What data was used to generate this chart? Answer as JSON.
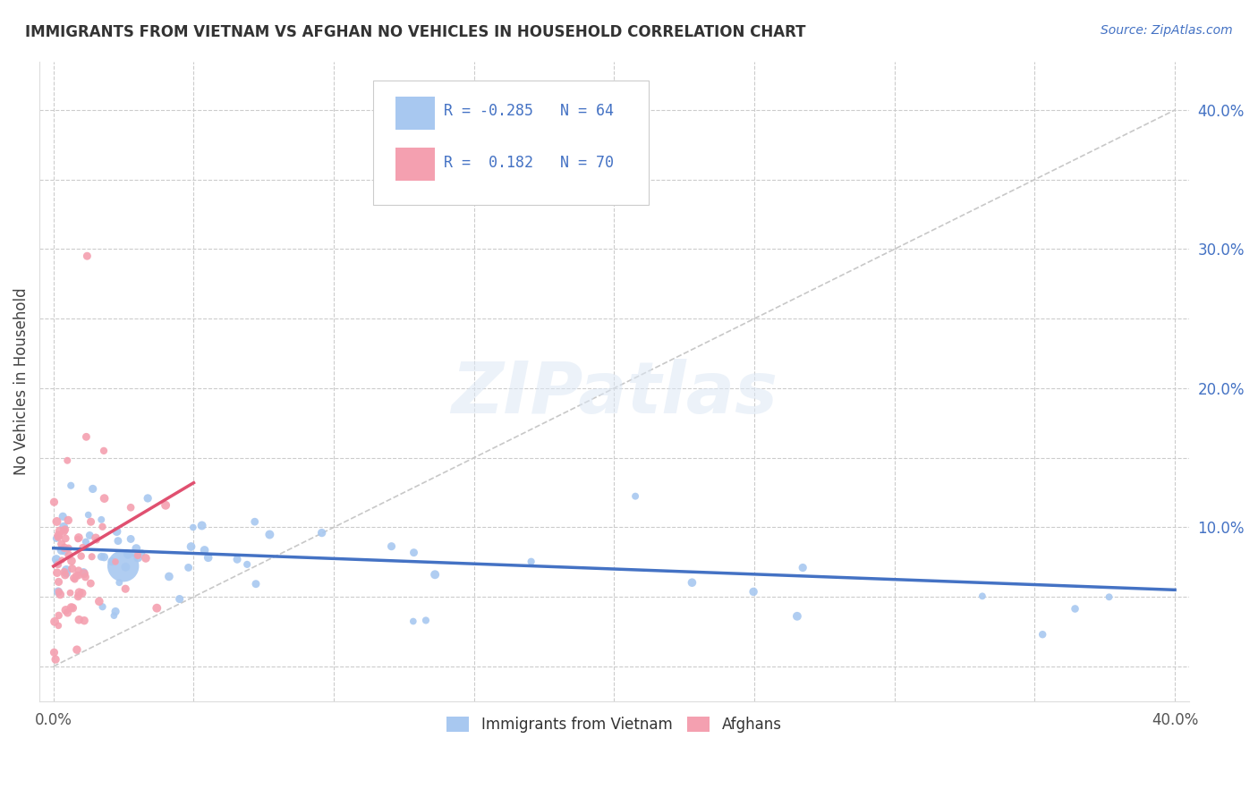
{
  "title": "IMMIGRANTS FROM VIETNAM VS AFGHAN NO VEHICLES IN HOUSEHOLD CORRELATION CHART",
  "source": "Source: ZipAtlas.com",
  "ylabel": "No Vehicles in Household",
  "xlim": [
    -0.005,
    0.405
  ],
  "ylim": [
    -0.025,
    0.435
  ],
  "xticks": [
    0.0,
    0.05,
    0.1,
    0.15,
    0.2,
    0.25,
    0.3,
    0.35,
    0.4
  ],
  "yticks": [
    0.0,
    0.05,
    0.1,
    0.15,
    0.2,
    0.25,
    0.3,
    0.35,
    0.4
  ],
  "right_yticks_show": [
    0.1,
    0.2,
    0.3,
    0.4
  ],
  "right_ytick_labels": [
    "10.0%",
    "20.0%",
    "30.0%",
    "40.0%"
  ],
  "xtick_labels": [
    "0.0%",
    "",
    "",
    "",
    "",
    "",
    "",
    "",
    "40.0%"
  ],
  "color_vietnam": "#a8c8f0",
  "color_afghan": "#f4a0b0",
  "color_line_vietnam": "#4472C4",
  "color_line_afghan": "#E05070",
  "color_diagonal": "#c8c8c8",
  "watermark": "ZIPatlas",
  "legend_label1": "Immigrants from Vietnam",
  "legend_label2": "Afghans",
  "viet_line_x0": 0.0,
  "viet_line_y0": 0.085,
  "viet_line_x1": 0.4,
  "viet_line_y1": 0.055,
  "afg_line_x0": 0.0,
  "afg_line_y0": 0.072,
  "afg_line_x1": 0.05,
  "afg_line_y1": 0.132
}
